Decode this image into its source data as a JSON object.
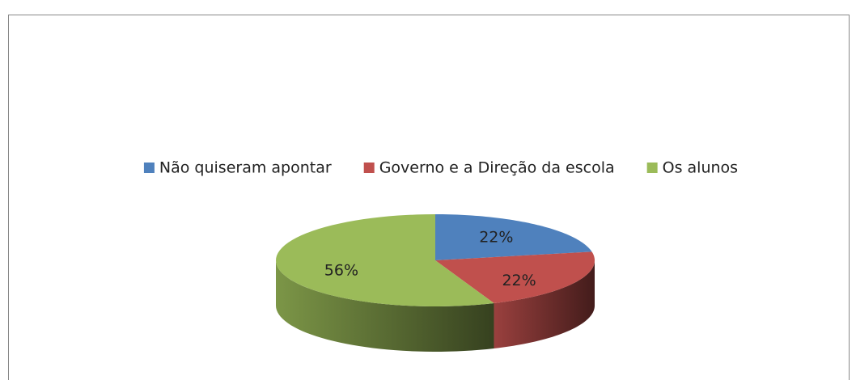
{
  "chart_data": {
    "type": "pie",
    "categories": [
      "Não quiseram apontar",
      "Governo e a Direção da escola",
      "Os alunos"
    ],
    "values": [
      22,
      22,
      56
    ],
    "value_labels": [
      "22%",
      "22%",
      "56%"
    ],
    "colors": [
      "#4f81bd",
      "#c0504d",
      "#9bbb59"
    ],
    "legend": "top"
  }
}
